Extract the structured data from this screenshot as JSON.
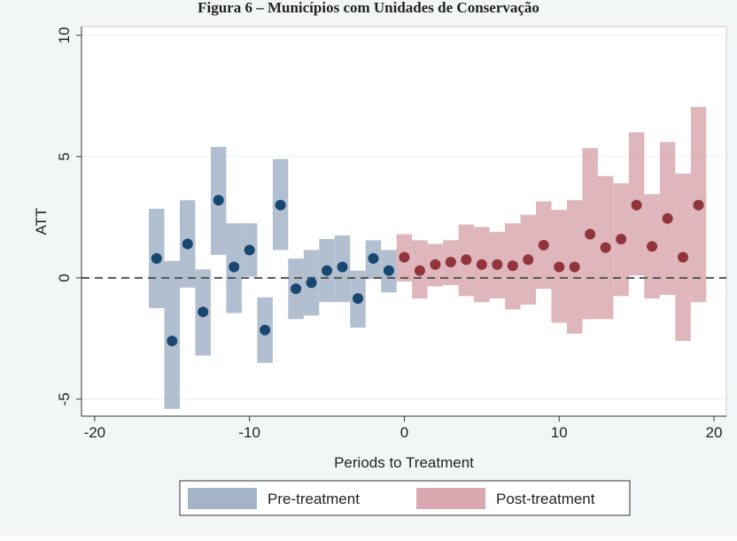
{
  "chart_data": {
    "type": "ci_bar",
    "title": "Figura 6 – Municípios com Unidades de Conservação",
    "x_label": "Periods to Treatment",
    "y_label": "ATT",
    "xlim": [
      -20.85,
      20.8
    ],
    "ylim": [
      -5.7,
      10.36
    ],
    "xticks": [
      -20,
      -10,
      0,
      10,
      20
    ],
    "yticks": [
      -5,
      0,
      5,
      10
    ],
    "grid": true,
    "hline": 0,
    "legend": "bottom",
    "series": [
      {
        "name": "Pre-treatment",
        "color": "#a3b4c8",
        "marker_color": "#1a476f",
        "x": [
          -16,
          -15,
          -14,
          -13,
          -12,
          -11,
          -10,
          -9,
          -8,
          -7,
          -6,
          -5,
          -4,
          -3,
          -2,
          -1
        ],
        "values": [
          0.8,
          -2.6,
          1.4,
          -1.4,
          3.2,
          0.45,
          1.15,
          -2.15,
          3.0,
          -0.45,
          -0.2,
          0.3,
          0.45,
          -0.85,
          0.8,
          0.3
        ],
        "lower": [
          -1.25,
          -5.4,
          -0.4,
          -3.2,
          0.95,
          -1.45,
          0.05,
          -3.5,
          1.15,
          -1.7,
          -1.55,
          -1.0,
          -1.0,
          -2.05,
          -0.05,
          -0.6
        ],
        "upper": [
          2.85,
          0.7,
          3.2,
          0.35,
          5.4,
          2.25,
          2.25,
          -0.8,
          4.9,
          0.8,
          1.15,
          1.6,
          1.75,
          0.3,
          1.55,
          1.15
        ]
      },
      {
        "name": "Post-treatment",
        "color": "#d9a9af",
        "marker_color": "#90353b",
        "x": [
          0,
          1,
          2,
          3,
          4,
          5,
          6,
          7,
          8,
          9,
          10,
          11,
          12,
          13,
          14,
          15,
          16,
          17,
          18,
          19
        ],
        "values": [
          0.85,
          0.3,
          0.55,
          0.65,
          0.75,
          0.55,
          0.55,
          0.5,
          0.75,
          1.35,
          0.45,
          0.45,
          1.8,
          1.25,
          1.6,
          3.0,
          1.3,
          2.45,
          0.85,
          3.0
        ],
        "lower": [
          -0.15,
          -0.85,
          -0.35,
          -0.3,
          -0.75,
          -1.0,
          -0.85,
          -1.3,
          -1.1,
          -0.45,
          -1.85,
          -2.3,
          -1.7,
          -1.7,
          -0.75,
          0.1,
          -0.85,
          -0.7,
          -2.6,
          -1.0
        ],
        "upper": [
          1.8,
          1.55,
          1.4,
          1.55,
          2.2,
          2.1,
          1.9,
          2.25,
          2.6,
          3.15,
          2.8,
          3.2,
          5.35,
          4.2,
          3.9,
          6.0,
          3.45,
          5.6,
          4.3,
          7.05
        ]
      }
    ]
  }
}
